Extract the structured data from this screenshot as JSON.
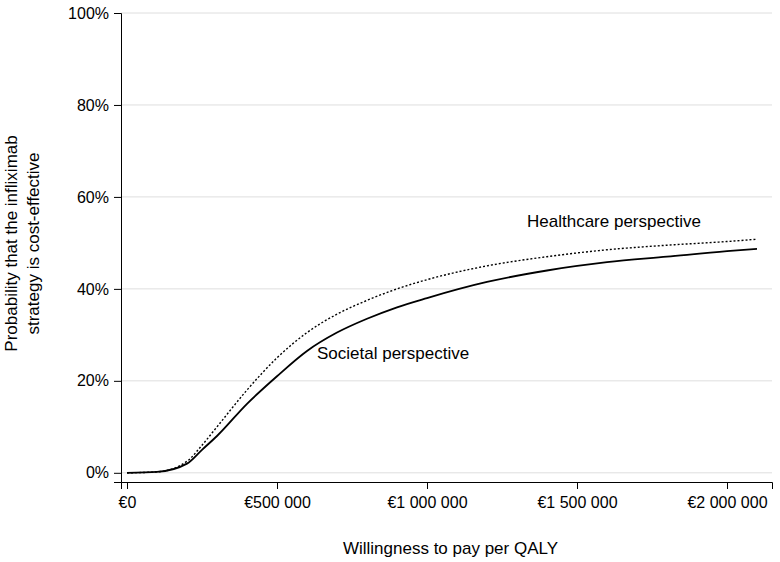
{
  "chart_data": {
    "type": "line",
    "xlabel": "Willingness to pay per QALY",
    "ylabel": [
      "Probability that the infliximab",
      "strategy is cost-effective"
    ],
    "x": [
      0,
      100000,
      200000,
      250000,
      300000,
      400000,
      500000,
      600000,
      700000,
      800000,
      900000,
      1000000,
      1200000,
      1400000,
      1600000,
      1800000,
      2000000,
      2100000
    ],
    "series": [
      {
        "name": "Healthcare perspective",
        "color": "#000000",
        "line_style": "dotted",
        "values": [
          0,
          0.2,
          2.5,
          6,
          10,
          18,
          25,
          30.5,
          34.5,
          37.5,
          40,
          42,
          45,
          47,
          48.5,
          49.5,
          50.3,
          50.8
        ]
      },
      {
        "name": "Societal perspective",
        "color": "#000000",
        "line_style": "solid",
        "values": [
          0,
          0.2,
          2,
          5,
          8,
          15,
          21,
          26.5,
          30.5,
          33.5,
          36,
          38,
          41.5,
          44,
          45.8,
          47,
          48.2,
          48.7
        ]
      }
    ],
    "xlim": [
      -20000,
      2150000
    ],
    "xticks": [
      {
        "value": 0,
        "label": "€0"
      },
      {
        "value": 500000,
        "label": "€500 000"
      },
      {
        "value": 1000000,
        "label": "€1 000 000"
      },
      {
        "value": 1500000,
        "label": "€1 500 000"
      },
      {
        "value": 2000000,
        "label": "€2 000 000"
      }
    ],
    "ylim": [
      -2,
      100
    ],
    "yticks": [
      {
        "value": 0,
        "label": "0%"
      },
      {
        "value": 20,
        "label": "20%"
      },
      {
        "value": 40,
        "label": "40%"
      },
      {
        "value": 60,
        "label": "60%"
      },
      {
        "value": 80,
        "label": "80%"
      },
      {
        "value": 100,
        "label": "100%"
      }
    ],
    "grid": true
  }
}
